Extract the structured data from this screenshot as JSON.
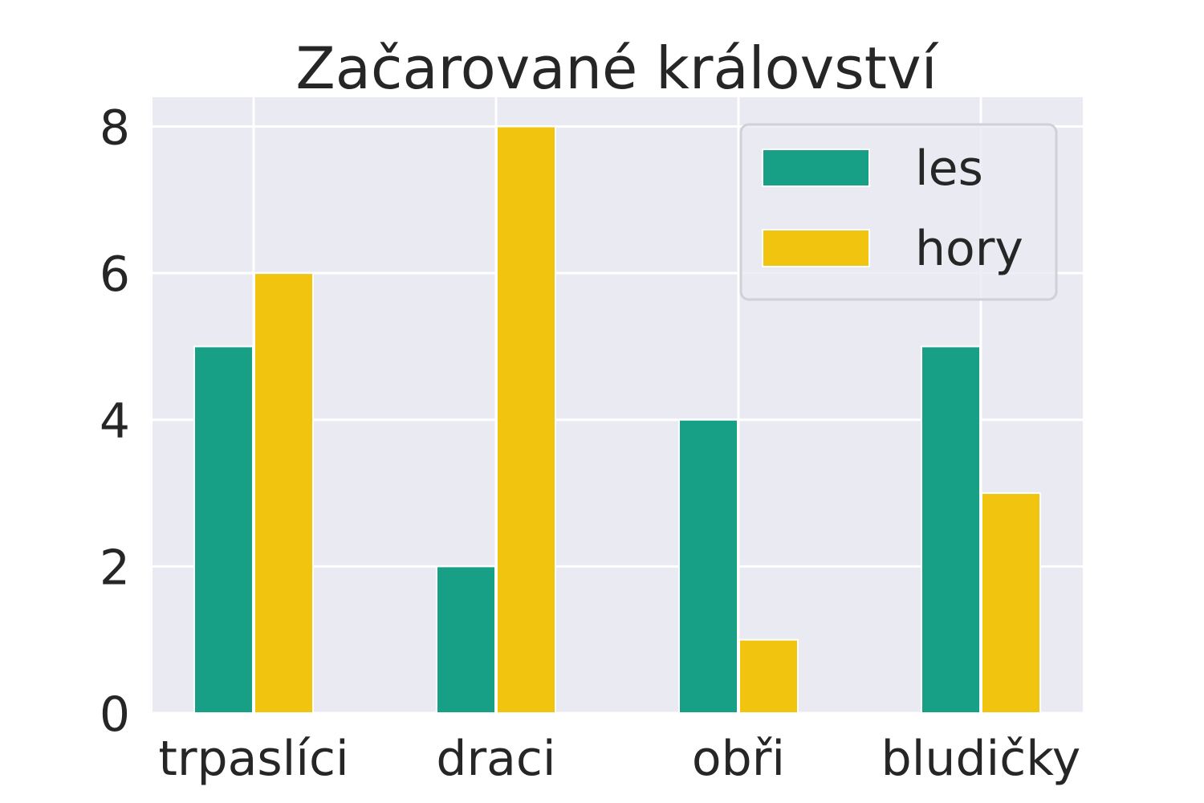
{
  "chart_data": {
    "type": "bar",
    "title": "Začarované království",
    "xlabel": "",
    "ylabel": "",
    "categories": [
      "trpaslíci",
      "draci",
      "obři",
      "bludičky"
    ],
    "series": [
      {
        "name": "les",
        "values": [
          5,
          2,
          4,
          5
        ],
        "color": "#17a085"
      },
      {
        "name": "hory",
        "values": [
          6,
          8,
          1,
          3
        ],
        "color": "#f1c40f"
      }
    ],
    "ylim": [
      0,
      8.4
    ],
    "yticks": [
      "0",
      "2",
      "4",
      "6",
      "8"
    ],
    "grid": true,
    "legend": "top-right",
    "background": "#eaeaf2"
  }
}
